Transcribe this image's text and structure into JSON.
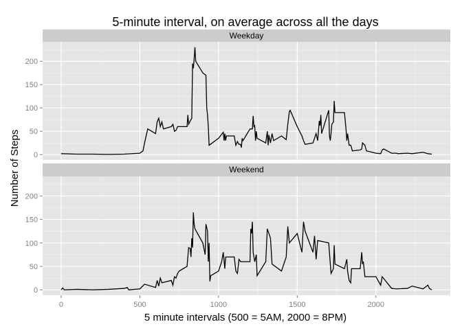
{
  "chart_data": {
    "type": "line",
    "title": "5-minute interval, on average across all the days",
    "xlabel": "5 minute intervals (500 = 5AM, 2000 = 8PM)",
    "ylabel": "Number of Steps",
    "color": "#000000",
    "grid": true,
    "xlim": [
      -117.75,
      2472.75
    ],
    "ylim": [
      -11.5,
      241.5
    ],
    "xticks": [
      0,
      500,
      1000,
      1500,
      2000
    ],
    "yticks": [
      0,
      50,
      100,
      150,
      200
    ],
    "xminor": [
      250,
      750,
      1250,
      1750,
      2250
    ],
    "yminor": [
      25,
      75,
      125,
      175,
      225
    ],
    "panels": [
      {
        "name": "Weekday",
        "x": [
          0,
          100,
          200,
          300,
          400,
          500,
          520,
          530,
          550,
          600,
          610,
          620,
          630,
          640,
          650,
          700,
          710,
          720,
          730,
          740,
          800,
          805,
          810,
          820,
          830,
          835,
          840,
          845,
          850,
          855,
          900,
          920,
          925,
          930,
          935,
          940,
          1000,
          1030,
          1035,
          1040,
          1045,
          1050,
          1100,
          1110,
          1120,
          1130,
          1140,
          1145,
          1150,
          1155,
          1200,
          1215,
          1220,
          1225,
          1230,
          1235,
          1240,
          1245,
          1300,
          1310,
          1315,
          1320,
          1330,
          1340,
          1350,
          1400,
          1430,
          1440,
          1450,
          1455,
          1500,
          1530,
          1540,
          1550,
          1600,
          1620,
          1630,
          1640,
          1645,
          1650,
          1655,
          1700,
          1705,
          1710,
          1715,
          1720,
          1730,
          1735,
          1740,
          1750,
          1800,
          1810,
          1815,
          1820,
          1830,
          1840,
          1845,
          1850,
          1900,
          1910,
          1915,
          1930,
          1940,
          2000,
          2030,
          2040,
          2050,
          2100,
          2130,
          2140,
          2200,
          2230,
          2300,
          2330,
          2355
        ],
        "values": [
          2,
          1,
          1,
          0.5,
          1,
          3,
          8,
          25,
          55,
          45,
          70,
          78,
          60,
          70,
          55,
          60,
          65,
          50,
          52,
          60,
          60,
          85,
          65,
          72,
          78,
          195,
          185,
          205,
          230,
          200,
          175,
          170,
          100,
          85,
          60,
          20,
          35,
          48,
          30,
          45,
          30,
          40,
          40,
          20,
          28,
          22,
          22,
          15,
          35,
          30,
          55,
          55,
          83,
          60,
          62,
          30,
          50,
          35,
          25,
          50,
          20,
          42,
          25,
          45,
          30,
          40,
          32,
          65,
          92,
          95,
          60,
          40,
          30,
          22,
          25,
          45,
          30,
          72,
          62,
          85,
          45,
          95,
          40,
          30,
          45,
          65,
          70,
          115,
          90,
          90,
          90,
          55,
          30,
          45,
          20,
          20,
          15,
          8,
          10,
          12,
          25,
          20,
          8,
          3,
          2,
          10,
          12,
          3,
          3,
          2,
          3,
          2,
          5,
          2,
          1
        ]
      },
      {
        "name": "Weekend",
        "x": [
          0,
          10,
          20,
          100,
          200,
          300,
          400,
          420,
          430,
          500,
          530,
          600,
          610,
          620,
          630,
          640,
          700,
          710,
          720,
          730,
          740,
          750,
          800,
          810,
          820,
          825,
          830,
          835,
          840,
          845,
          850,
          900,
          915,
          920,
          930,
          935,
          940,
          945,
          950,
          1000,
          1020,
          1030,
          1040,
          1045,
          1100,
          1110,
          1120,
          1130,
          1140,
          1200,
          1205,
          1210,
          1215,
          1220,
          1230,
          1240,
          1245,
          1300,
          1310,
          1320,
          1330,
          1340,
          1400,
          1430,
          1440,
          1450,
          1500,
          1530,
          1540,
          1550,
          1600,
          1610,
          1620,
          1630,
          1700,
          1715,
          1730,
          1735,
          1740,
          1800,
          1815,
          1820,
          1830,
          1840,
          1845,
          1900,
          1910,
          1915,
          1920,
          1930,
          2000,
          2030,
          2040,
          2100,
          2130,
          2200,
          2230,
          2300,
          2330,
          2340,
          2355
        ],
        "values": [
          0,
          4,
          0,
          1,
          0,
          1,
          3,
          5,
          0,
          2,
          12,
          5,
          20,
          8,
          25,
          15,
          20,
          10,
          28,
          25,
          35,
          40,
          50,
          90,
          88,
          70,
          110,
          90,
          165,
          140,
          130,
          100,
          75,
          140,
          125,
          60,
          100,
          18,
          30,
          40,
          60,
          80,
          45,
          70,
          70,
          40,
          35,
          65,
          60,
          60,
          130,
          120,
          145,
          80,
          60,
          75,
          30,
          60,
          130,
          120,
          110,
          55,
          40,
          70,
          135,
          100,
          120,
          80,
          145,
          125,
          80,
          115,
          65,
          105,
          100,
          35,
          45,
          95,
          55,
          45,
          65,
          40,
          20,
          15,
          45,
          45,
          80,
          55,
          60,
          28,
          28,
          10,
          28,
          3,
          2,
          3,
          8,
          2,
          10,
          3,
          0
        ]
      }
    ]
  }
}
